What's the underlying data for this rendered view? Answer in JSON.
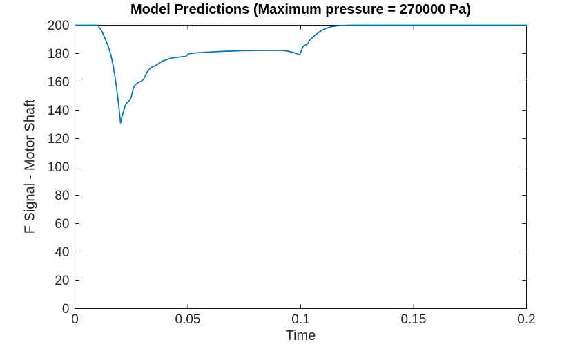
{
  "chart_data": {
    "type": "line",
    "title": "Model Predictions (Maximum pressure = 270000 Pa)",
    "xlabel": "Time",
    "ylabel": "F Signal - Motor Shaft",
    "xlim": [
      0,
      0.2
    ],
    "ylim": [
      0,
      200
    ],
    "grid": false,
    "legend": null,
    "box": true,
    "tick_direction": "in",
    "xticks": {
      "values": [
        0,
        0.05,
        0.1,
        0.15,
        0.2
      ],
      "labels": [
        "0",
        "0.05",
        "0.1",
        "0.15",
        "0.2"
      ]
    },
    "yticks": {
      "values": [
        0,
        20,
        40,
        60,
        80,
        100,
        120,
        140,
        160,
        180,
        200
      ],
      "labels": [
        "0",
        "20",
        "40",
        "60",
        "80",
        "100",
        "120",
        "140",
        "160",
        "180",
        "200"
      ]
    },
    "styles": {
      "line_color": "#0072BD",
      "axis_color": "#1a1a1a",
      "tick_label_color": "#262626",
      "title_color": "#000000",
      "background": "#ffffff"
    },
    "series": [
      {
        "name": "F Signal - Motor Shaft",
        "points": [
          [
            0,
            200
          ],
          [
            0.0102,
            200
          ],
          [
            0.011,
            198
          ],
          [
            0.012,
            195.5
          ],
          [
            0.013,
            192
          ],
          [
            0.014,
            188
          ],
          [
            0.015,
            184
          ],
          [
            0.016,
            178.5
          ],
          [
            0.017,
            171
          ],
          [
            0.018,
            161
          ],
          [
            0.019,
            149
          ],
          [
            0.0197,
            139
          ],
          [
            0.0202,
            131
          ],
          [
            0.0207,
            134.5
          ],
          [
            0.0213,
            138
          ],
          [
            0.0222,
            143
          ],
          [
            0.0229,
            145
          ],
          [
            0.024,
            146.5
          ],
          [
            0.0249,
            149
          ],
          [
            0.0255,
            153
          ],
          [
            0.026,
            156
          ],
          [
            0.0268,
            158
          ],
          [
            0.028,
            159.5
          ],
          [
            0.0295,
            160.5
          ],
          [
            0.0305,
            162
          ],
          [
            0.0312,
            164.5
          ],
          [
            0.032,
            167
          ],
          [
            0.033,
            169
          ],
          [
            0.0342,
            170.5
          ],
          [
            0.0358,
            171.5
          ],
          [
            0.0372,
            173
          ],
          [
            0.0385,
            174.5
          ],
          [
            0.0402,
            175.5
          ],
          [
            0.0428,
            176.8
          ],
          [
            0.0458,
            177.5
          ],
          [
            0.0492,
            178
          ],
          [
            0.0502,
            179.8
          ],
          [
            0.0535,
            180.5
          ],
          [
            0.059,
            181
          ],
          [
            0.066,
            181.6
          ],
          [
            0.074,
            182
          ],
          [
            0.083,
            182.2
          ],
          [
            0.0915,
            182.2
          ],
          [
            0.094,
            181.8
          ],
          [
            0.0965,
            180.8
          ],
          [
            0.0983,
            180
          ],
          [
            0.0993,
            179
          ],
          [
            0.1,
            180.5
          ],
          [
            0.1004,
            182.5
          ],
          [
            0.101,
            184.8
          ],
          [
            0.1017,
            185.8
          ],
          [
            0.1026,
            186.3
          ],
          [
            0.1032,
            187
          ],
          [
            0.104,
            189.5
          ],
          [
            0.105,
            191
          ],
          [
            0.1062,
            192.8
          ],
          [
            0.108,
            195
          ],
          [
            0.1098,
            196.8
          ],
          [
            0.112,
            198.2
          ],
          [
            0.114,
            199.1
          ],
          [
            0.1163,
            199.6
          ],
          [
            0.119,
            199.9
          ],
          [
            0.122,
            200
          ],
          [
            0.2,
            200
          ]
        ]
      }
    ]
  }
}
